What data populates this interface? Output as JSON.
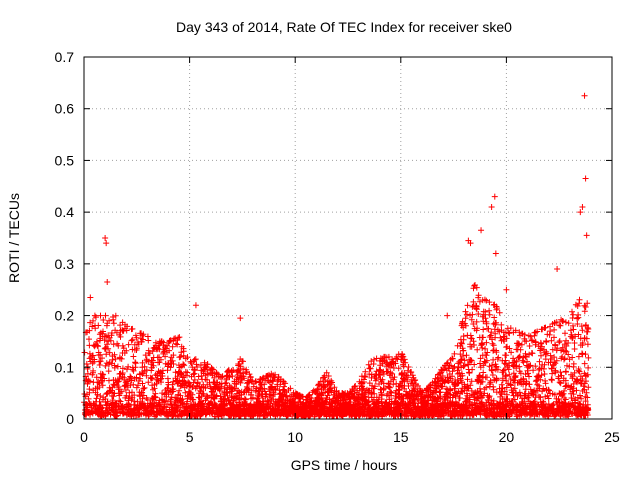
{
  "chart_data": {
    "type": "scatter",
    "title": "Day 343 of 2014, Rate Of TEC Index for receiver ske0",
    "xlabel": "GPS time / hours",
    "ylabel": "ROTI / TECUs",
    "xlim": [
      0,
      25
    ],
    "ylim": [
      0,
      0.7
    ],
    "xticks": [
      "0",
      "5",
      "10",
      "15",
      "20",
      "25"
    ],
    "yticks": [
      "0",
      "0.1",
      "0.2",
      "0.3",
      "0.4",
      "0.5",
      "0.6",
      "0.7"
    ],
    "grid": true,
    "marker": "+",
    "series_color": "#ff0000",
    "notable_points": [
      {
        "x": 23.7,
        "y": 0.625
      },
      {
        "x": 23.75,
        "y": 0.465
      },
      {
        "x": 19.45,
        "y": 0.43
      },
      {
        "x": 19.3,
        "y": 0.41
      },
      {
        "x": 23.6,
        "y": 0.41
      },
      {
        "x": 23.5,
        "y": 0.4
      },
      {
        "x": 18.8,
        "y": 0.365
      },
      {
        "x": 23.8,
        "y": 0.355
      },
      {
        "x": 1.0,
        "y": 0.35
      },
      {
        "x": 1.05,
        "y": 0.34
      },
      {
        "x": 18.2,
        "y": 0.345
      },
      {
        "x": 18.3,
        "y": 0.34
      },
      {
        "x": 19.5,
        "y": 0.32
      },
      {
        "x": 1.1,
        "y": 0.265
      },
      {
        "x": 22.4,
        "y": 0.29
      },
      {
        "x": 5.3,
        "y": 0.22
      },
      {
        "x": 7.4,
        "y": 0.195
      },
      {
        "x": 17.2,
        "y": 0.2
      },
      {
        "x": 20.0,
        "y": 0.25
      },
      {
        "x": 0.3,
        "y": 0.235
      }
    ],
    "envelope": {
      "x": [
        0,
        0.5,
        1,
        1.5,
        2,
        2.5,
        3,
        3.5,
        4,
        4.5,
        5,
        5.5,
        6,
        6.5,
        7,
        7.5,
        8,
        8.5,
        9,
        9.5,
        10,
        10.5,
        11,
        11.5,
        12,
        12.5,
        13,
        13.5,
        14,
        14.5,
        15,
        15.5,
        16,
        16.5,
        17,
        17.5,
        18,
        18.5,
        19,
        19.5,
        20,
        20.5,
        21,
        21.5,
        22,
        22.5,
        23,
        23.5,
        23.9
      ],
      "y": [
        0.17,
        0.2,
        0.2,
        0.2,
        0.18,
        0.17,
        0.16,
        0.15,
        0.15,
        0.16,
        0.11,
        0.12,
        0.1,
        0.08,
        0.1,
        0.12,
        0.07,
        0.08,
        0.09,
        0.07,
        0.05,
        0.04,
        0.06,
        0.09,
        0.05,
        0.05,
        0.07,
        0.11,
        0.12,
        0.12,
        0.13,
        0.09,
        0.05,
        0.07,
        0.1,
        0.12,
        0.2,
        0.26,
        0.23,
        0.22,
        0.18,
        0.17,
        0.16,
        0.17,
        0.18,
        0.19,
        0.2,
        0.24,
        0.22
      ]
    }
  }
}
